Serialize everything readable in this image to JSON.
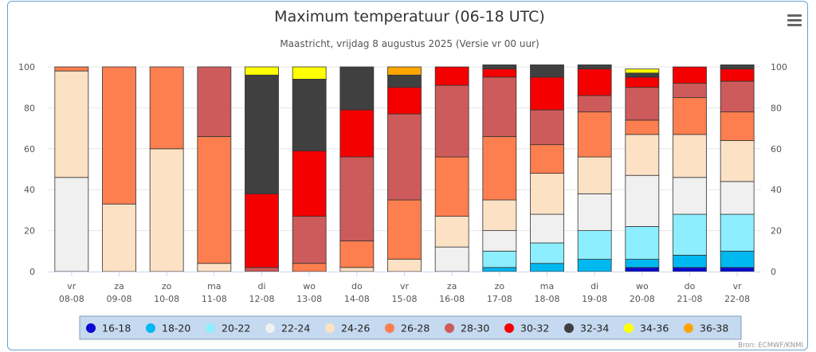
{
  "chart_data": {
    "type": "bar",
    "stacked": true,
    "title": "Maximum temperatuur (06-18 UTC)",
    "subtitle": "Maastricht, vrijdag 8 augustus 2025 (Versie vr 00 uur)",
    "credit": "Bron: ECMWF/KNMI",
    "ylim": [
      0,
      100
    ],
    "yticks": [
      0,
      20,
      40,
      60,
      80,
      100
    ],
    "grid": true,
    "legend_position": "bottom",
    "categories": [
      [
        "vr",
        "08-08"
      ],
      [
        "za",
        "09-08"
      ],
      [
        "zo",
        "10-08"
      ],
      [
        "ma",
        "11-08"
      ],
      [
        "di",
        "12-08"
      ],
      [
        "wo",
        "13-08"
      ],
      [
        "do",
        "14-08"
      ],
      [
        "vr",
        "15-08"
      ],
      [
        "za",
        "16-08"
      ],
      [
        "zo",
        "17-08"
      ],
      [
        "ma",
        "18-08"
      ],
      [
        "di",
        "19-08"
      ],
      [
        "wo",
        "20-08"
      ],
      [
        "do",
        "21-08"
      ],
      [
        "vr",
        "22-08"
      ]
    ],
    "series": [
      {
        "name": "16-18",
        "color": "#0a0ad2",
        "values": [
          0,
          0,
          0,
          0,
          0,
          0,
          0,
          0,
          0,
          0,
          0,
          0,
          2,
          2,
          2
        ]
      },
      {
        "name": "18-20",
        "color": "#00b8f0",
        "values": [
          0,
          0,
          0,
          0,
          0,
          0,
          0,
          0,
          0,
          2,
          4,
          6,
          4,
          6,
          8
        ]
      },
      {
        "name": "20-22",
        "color": "#8ceeff",
        "values": [
          0,
          0,
          0,
          0,
          0,
          0,
          0,
          0,
          0,
          8,
          10,
          14,
          16,
          20,
          18
        ]
      },
      {
        "name": "22-24",
        "color": "#f0f0f0",
        "values": [
          46,
          0,
          0,
          0,
          0,
          0,
          0,
          0,
          12,
          10,
          14,
          18,
          25,
          18,
          16
        ]
      },
      {
        "name": "24-26",
        "color": "#fde1c4",
        "values": [
          52,
          33,
          60,
          4,
          0,
          0,
          2,
          6,
          15,
          15,
          20,
          18,
          20,
          21,
          20
        ]
      },
      {
        "name": "26-28",
        "color": "#fd7e4f",
        "values": [
          2,
          67,
          40,
          62,
          0,
          4,
          13,
          29,
          29,
          31,
          14,
          22,
          7,
          18,
          14
        ]
      },
      {
        "name": "28-30",
        "color": "#cd5b5b",
        "values": [
          0,
          0,
          0,
          34,
          2,
          23,
          41,
          42,
          35,
          29,
          17,
          8,
          16,
          7,
          15
        ]
      },
      {
        "name": "30-32",
        "color": "#f40000",
        "values": [
          0,
          0,
          0,
          0,
          36,
          32,
          23,
          13,
          9,
          4,
          16,
          13,
          5,
          8,
          6
        ]
      },
      {
        "name": "32-34",
        "color": "#404040",
        "values": [
          0,
          0,
          0,
          0,
          58,
          35,
          21,
          6,
          0,
          2,
          6,
          2,
          2,
          0,
          2
        ]
      },
      {
        "name": "34-36",
        "color": "#ffff00",
        "values": [
          0,
          0,
          0,
          0,
          4,
          6,
          0,
          0,
          0,
          0,
          0,
          0,
          2,
          0,
          0
        ]
      },
      {
        "name": "36-38",
        "color": "#ffa500",
        "values": [
          0,
          0,
          0,
          0,
          0,
          0,
          0,
          4,
          0,
          0,
          0,
          0,
          0,
          0,
          0
        ]
      }
    ]
  }
}
